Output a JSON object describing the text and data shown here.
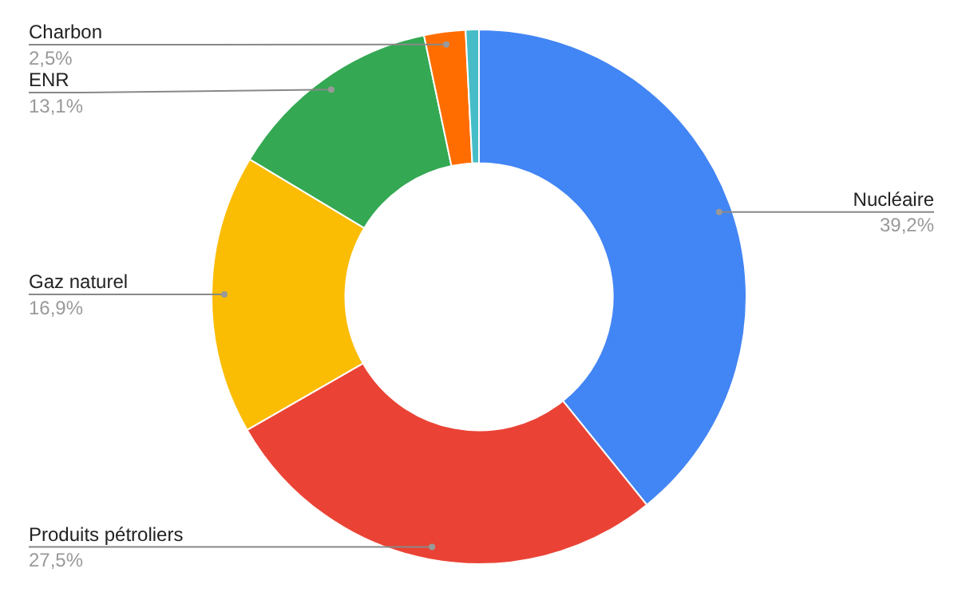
{
  "chart_data": {
    "type": "donut",
    "categories": [
      "Nucléaire",
      "Produits pétroliers",
      "Gaz naturel",
      "ENR",
      "Charbon",
      null
    ],
    "values": [
      39.2,
      27.5,
      16.9,
      13.1,
      2.5,
      0.8
    ],
    "colors": [
      "#4285f4",
      "#ea4335",
      "#fbbc04",
      "#34a853",
      "#ff6d01",
      "#46bdc6"
    ],
    "value_labels": [
      "39,2%",
      "27,5%",
      "16,9%",
      "13,1%",
      "2,5%",
      null
    ]
  }
}
